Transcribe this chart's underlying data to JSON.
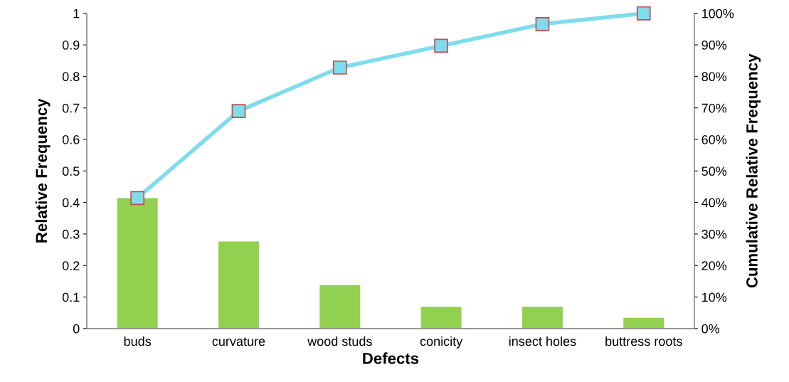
{
  "chart_data": {
    "type": "bar",
    "xlabel": "Defects",
    "ylabel": "Relative Frequency",
    "y2label": "Cumulative Relative Frequency",
    "categories": [
      "buds",
      "curvature",
      "wood studs",
      "conicity",
      "insect holes",
      "buttress roots"
    ],
    "series": [
      {
        "color": "#92d050",
        "values": [
          0.414,
          0.276,
          0.138,
          0.069,
          0.069,
          0.034
        ]
      },
      {
        "type": "line",
        "axis": "y2",
        "color": "#7fdcec",
        "marker": "square",
        "line_style": "solid",
        "values": [
          41.4,
          69.0,
          82.8,
          89.7,
          96.6,
          100
        ]
      }
    ],
    "ylim": [
      0,
      1
    ],
    "yticks": [
      0,
      0.1,
      0.2,
      0.3,
      0.4,
      0.5,
      0.6,
      0.7,
      0.8,
      0.9,
      1
    ],
    "y2lim": [
      0,
      100
    ],
    "y2ticks": [
      {
        "value": 0,
        "label": "0%"
      },
      {
        "value": 10,
        "label": "10%"
      },
      {
        "value": 20,
        "label": "20%"
      },
      {
        "value": 30,
        "label": "30%"
      },
      {
        "value": 40,
        "label": "40%"
      },
      {
        "value": 50,
        "label": "50%"
      },
      {
        "value": 60,
        "label": "60%"
      },
      {
        "value": 70,
        "label": "70%"
      },
      {
        "value": 80,
        "label": "80%"
      },
      {
        "value": 90,
        "label": "90%"
      },
      {
        "value": 100,
        "label": "100%"
      }
    ],
    "grid": false,
    "legend": false
  }
}
